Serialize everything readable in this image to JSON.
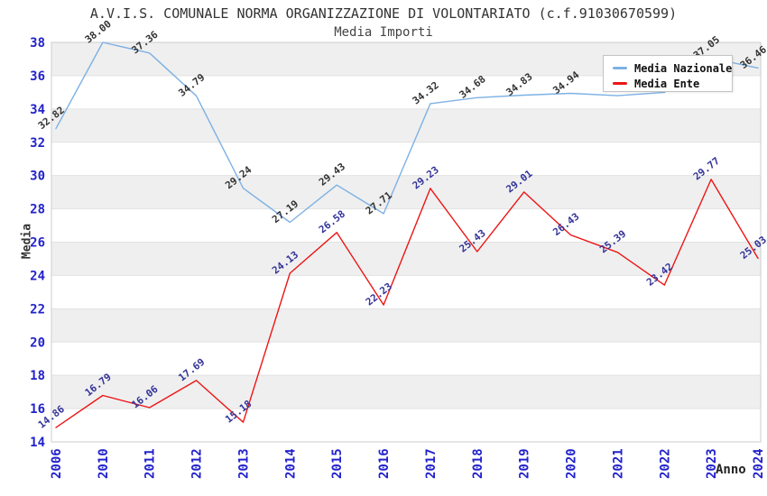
{
  "title": "A.V.I.S. COMUNALE NORMA ORGANIZZAZIONE DI VOLONTARIATO (c.f.91030670599)",
  "subtitle": "Media Importi",
  "chart_data": {
    "type": "line",
    "categories": [
      "2006",
      "2010",
      "2011",
      "2012",
      "2013",
      "2014",
      "2015",
      "2016",
      "2017",
      "2018",
      "2019",
      "2020",
      "2021",
      "2022",
      "2023",
      "2024"
    ],
    "series": [
      {
        "name": "Media Nazionale",
        "color": "#7DB1E4",
        "label_color": "#333333",
        "values": [
          32.82,
          38.0,
          37.36,
          34.79,
          29.24,
          27.19,
          29.43,
          27.71,
          34.32,
          34.68,
          34.83,
          34.94,
          34.8,
          35.0,
          37.05,
          36.46
        ],
        "labels": [
          "32.82",
          "38.00",
          "37.36",
          "34.79",
          "29.24",
          "27.19",
          "29.43",
          "27.71",
          "34.32",
          "34.68",
          "34.83",
          "34.94",
          "",
          "",
          "37.05",
          "36.46"
        ]
      },
      {
        "name": "Media Ente",
        "color": "#ED1515",
        "label_color": "#333399",
        "values": [
          14.86,
          16.79,
          16.06,
          17.69,
          15.18,
          24.13,
          26.58,
          22.23,
          29.23,
          25.43,
          29.01,
          26.43,
          25.39,
          23.42,
          29.77,
          25.03
        ],
        "labels": [
          "14.86",
          "16.79",
          "16.06",
          "17.69",
          "15.18",
          "24.13",
          "26.58",
          "22.23",
          "29.23",
          "25.43",
          "29.01",
          "26.43",
          "25.39",
          "23.42",
          "29.77",
          "25.03"
        ]
      }
    ],
    "xlabel": "Anno",
    "ylabel": "Media",
    "ylim": [
      14,
      38
    ],
    "ytick_step": 2,
    "tick_label_color": "#2222CC",
    "band_fill_color": "#EFEFEF",
    "gridline_color": "#E2E2E2",
    "plot_border_color": "#CCCCCC",
    "grid": "horizontal-bands",
    "legend_position": "top-right"
  }
}
